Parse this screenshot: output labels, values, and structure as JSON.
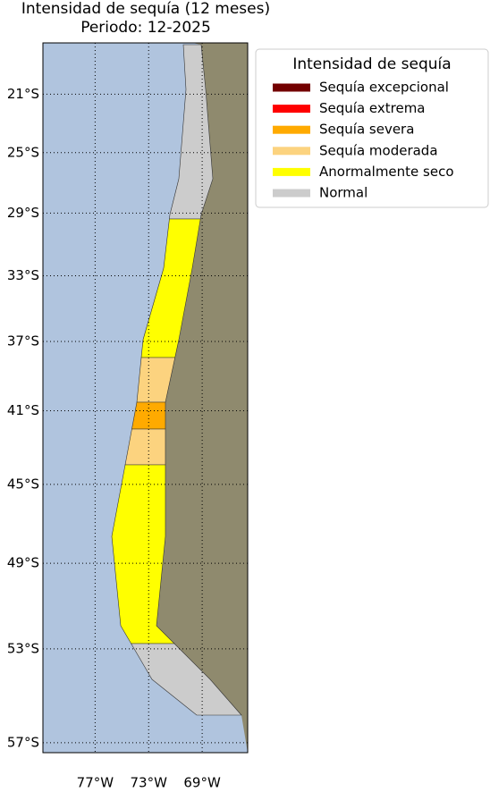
{
  "title": [
    "Intensidad de sequía (12 meses)",
    "Periodo: 12-2025"
  ],
  "map": {
    "lat_lim": [
      -57.4,
      -17.4
    ],
    "lon_lim": [
      -80.9,
      -65.6
    ],
    "lat_ticks": [
      {
        "value": -21,
        "label": "21°S"
      },
      {
        "value": -25,
        "label": "25°S"
      },
      {
        "value": -29,
        "label": "29°S"
      },
      {
        "value": -33,
        "label": "33°S"
      },
      {
        "value": -37,
        "label": "37°S"
      },
      {
        "value": -41,
        "label": "41°S"
      },
      {
        "value": -45,
        "label": "45°S"
      },
      {
        "value": -49,
        "label": "49°S"
      },
      {
        "value": -53,
        "label": "53°S"
      },
      {
        "value": -57,
        "label": "57°S"
      }
    ],
    "lon_ticks": [
      {
        "value": -77,
        "label": "77°W"
      },
      {
        "value": -73,
        "label": "73°W"
      },
      {
        "value": -69,
        "label": "69°W"
      }
    ]
  },
  "legend": {
    "title": "Intensidad de sequía",
    "items": [
      {
        "name": "Sequía excepcional",
        "color": "#730000"
      },
      {
        "name": "Sequía extrema",
        "color": "#ff0000"
      },
      {
        "name": "Sequía severa",
        "color": "#ffaa00"
      },
      {
        "name": "Sequía moderada",
        "color": "#fcd37f"
      },
      {
        "name": "Anormalmente seco",
        "color": "#ffff00"
      },
      {
        "name": "Normal",
        "color": "#cccccc"
      }
    ]
  }
}
